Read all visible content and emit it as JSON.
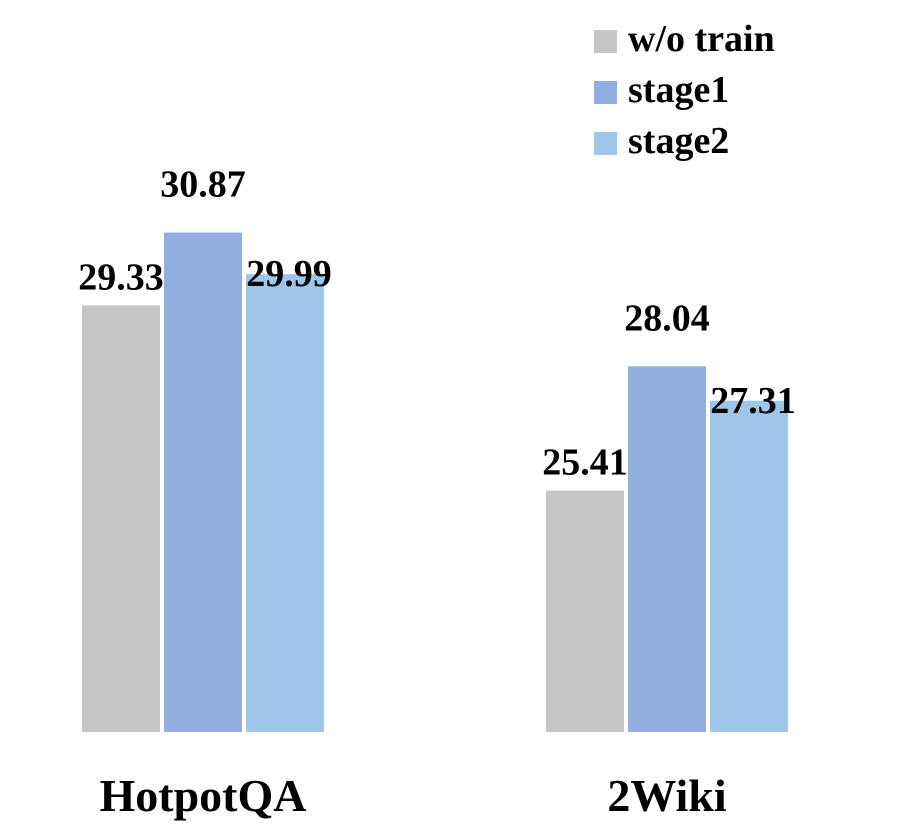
{
  "chart_data": {
    "type": "bar",
    "title": "",
    "xlabel": "",
    "ylabel": "",
    "categories": [
      "HotpotQA",
      "2Wiki"
    ],
    "series": [
      {
        "name": "w/o train",
        "color": "#c6c6c6",
        "values": [
          29.33,
          25.41
        ]
      },
      {
        "name": "stage1",
        "color": "#92aee0",
        "values": [
          30.87,
          28.04
        ]
      },
      {
        "name": "stage2",
        "color": "#9fc5e8",
        "values": [
          29.99,
          27.31
        ]
      }
    ],
    "value_labels": [
      [
        "29.33",
        "25.41"
      ],
      [
        "30.87",
        "28.04"
      ],
      [
        "29.99",
        "27.31"
      ]
    ],
    "ylim": [
      20.3,
      32.3
    ],
    "grid": false,
    "legend_position": "top-right"
  }
}
